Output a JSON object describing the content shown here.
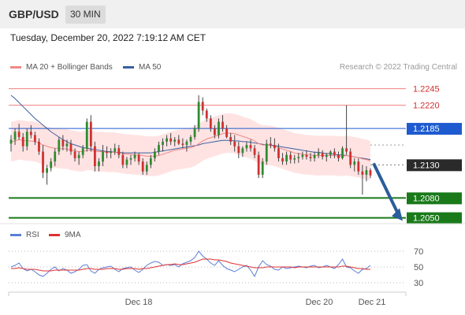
{
  "header": {
    "symbol": "GBP/USD",
    "timeframe": "30 MIN"
  },
  "timestamp": "Tuesday, December 20, 2022 7:19:12 AM CET",
  "legend": {
    "ma20": {
      "label": "MA 20 + Bollinger Bands",
      "color": "#f08a84"
    },
    "ma50": {
      "label": "MA 50",
      "color": "#3a5fa0"
    }
  },
  "credit": "Research © 2022 Trading Central",
  "rsi_legend": {
    "rsi": {
      "label": "RSI",
      "color": "#5b7fd6"
    },
    "ma9": {
      "label": "9MA",
      "color": "#e03030"
    }
  },
  "colors": {
    "bull": "#2e8b2e",
    "bear": "#d03030",
    "resistance": "#f08080",
    "support": "#1a7a1a",
    "pivot": "#1e5bd0",
    "current": "#2a2a2a",
    "forecast": "#2a5d9a",
    "band": "#ffdcdc"
  },
  "chart_data": {
    "type": "candlestick",
    "title": "GBP/USD",
    "ylim": [
      1.204,
      1.226
    ],
    "x_ticks": [
      "Dec 18",
      "Dec 20",
      "Dec 21"
    ],
    "levels": [
      {
        "label": "1.2245",
        "value": 1.2245,
        "kind": "resistance"
      },
      {
        "label": "1.2220",
        "value": 1.222,
        "kind": "resistance"
      },
      {
        "label": "1.2185",
        "value": 1.2185,
        "kind": "pivot"
      },
      {
        "label": "1.2130",
        "value": 1.213,
        "kind": "current"
      },
      {
        "label": "1.2080",
        "value": 1.208,
        "kind": "support"
      },
      {
        "label": "1.2050",
        "value": 1.205,
        "kind": "support"
      }
    ],
    "forecast": {
      "from": 1.213,
      "to": 1.2055,
      "direction": "down"
    },
    "ohlc": [
      [
        1.2162,
        1.2175,
        1.215,
        1.2168
      ],
      [
        1.2168,
        1.2185,
        1.216,
        1.218
      ],
      [
        1.218,
        1.2192,
        1.2168,
        1.2172
      ],
      [
        1.2172,
        1.2178,
        1.215,
        1.2158
      ],
      [
        1.2158,
        1.2185,
        1.2152,
        1.218
      ],
      [
        1.218,
        1.219,
        1.217,
        1.2175
      ],
      [
        1.2175,
        1.218,
        1.216,
        1.2165
      ],
      [
        1.2165,
        1.217,
        1.2145,
        1.215
      ],
      [
        1.215,
        1.216,
        1.211,
        1.2118
      ],
      [
        1.2118,
        1.213,
        1.21,
        1.2125
      ],
      [
        1.2125,
        1.214,
        1.212,
        1.2135
      ],
      [
        1.2135,
        1.2155,
        1.2128,
        1.215
      ],
      [
        1.215,
        1.2172,
        1.2145,
        1.2168
      ],
      [
        1.2168,
        1.2175,
        1.2152,
        1.2158
      ],
      [
        1.2158,
        1.2168,
        1.215,
        1.2162
      ],
      [
        1.2162,
        1.2168,
        1.2145,
        1.215
      ],
      [
        1.215,
        1.2155,
        1.2135,
        1.214
      ],
      [
        1.214,
        1.215,
        1.213,
        1.2145
      ],
      [
        1.2145,
        1.216,
        1.214,
        1.2155
      ],
      [
        1.2155,
        1.22,
        1.215,
        1.2195
      ],
      [
        1.2195,
        1.2205,
        1.215,
        1.2158
      ],
      [
        1.2158,
        1.2165,
        1.212,
        1.2128
      ],
      [
        1.2128,
        1.214,
        1.212,
        1.2135
      ],
      [
        1.2135,
        1.216,
        1.2128,
        1.215
      ],
      [
        1.215,
        1.2158,
        1.214,
        1.2148
      ],
      [
        1.2148,
        1.2155,
        1.214,
        1.215
      ],
      [
        1.215,
        1.2162,
        1.2145,
        1.2155
      ],
      [
        1.2155,
        1.216,
        1.214,
        1.2145
      ],
      [
        1.2145,
        1.215,
        1.2125,
        1.213
      ],
      [
        1.213,
        1.2142,
        1.2125,
        1.2138
      ],
      [
        1.2138,
        1.2145,
        1.213,
        1.214
      ],
      [
        1.214,
        1.215,
        1.2135,
        1.2145
      ],
      [
        1.2145,
        1.2148,
        1.213,
        1.2135
      ],
      [
        1.2135,
        1.214,
        1.2115,
        1.212
      ],
      [
        1.212,
        1.2135,
        1.2115,
        1.213
      ],
      [
        1.213,
        1.2145,
        1.2125,
        1.214
      ],
      [
        1.214,
        1.2155,
        1.2135,
        1.215
      ],
      [
        1.215,
        1.2165,
        1.2145,
        1.216
      ],
      [
        1.216,
        1.217,
        1.215,
        1.2165
      ],
      [
        1.2165,
        1.2175,
        1.2158,
        1.217
      ],
      [
        1.217,
        1.2178,
        1.216,
        1.2165
      ],
      [
        1.2165,
        1.2172,
        1.2158,
        1.2168
      ],
      [
        1.2168,
        1.2175,
        1.216,
        1.2162
      ],
      [
        1.2162,
        1.217,
        1.2155,
        1.216
      ],
      [
        1.216,
        1.2168,
        1.215,
        1.2165
      ],
      [
        1.2165,
        1.2175,
        1.216,
        1.2172
      ],
      [
        1.2172,
        1.219,
        1.2168,
        1.2185
      ],
      [
        1.2185,
        1.2235,
        1.218,
        1.2225
      ],
      [
        1.2225,
        1.2232,
        1.2205,
        1.2212
      ],
      [
        1.2212,
        1.2215,
        1.2195,
        1.22
      ],
      [
        1.22,
        1.2205,
        1.218,
        1.2185
      ],
      [
        1.2185,
        1.219,
        1.217,
        1.2175
      ],
      [
        1.2175,
        1.22,
        1.217,
        1.2195
      ],
      [
        1.2195,
        1.2205,
        1.218,
        1.2185
      ],
      [
        1.2185,
        1.219,
        1.217,
        1.2172
      ],
      [
        1.2172,
        1.2178,
        1.216,
        1.2165
      ],
      [
        1.2165,
        1.2175,
        1.215,
        1.2158
      ],
      [
        1.2158,
        1.2165,
        1.214,
        1.2148
      ],
      [
        1.2148,
        1.2158,
        1.2142,
        1.2155
      ],
      [
        1.2155,
        1.2165,
        1.215,
        1.216
      ],
      [
        1.216,
        1.2168,
        1.215,
        1.2155
      ],
      [
        1.2155,
        1.216,
        1.214,
        1.2145
      ],
      [
        1.2145,
        1.215,
        1.211,
        1.2115
      ],
      [
        1.2115,
        1.214,
        1.211,
        1.2135
      ],
      [
        1.2135,
        1.2168,
        1.213,
        1.2162
      ],
      [
        1.2162,
        1.2172,
        1.2155,
        1.216
      ],
      [
        1.216,
        1.217,
        1.215,
        1.2155
      ],
      [
        1.2155,
        1.2162,
        1.2135,
        1.214
      ],
      [
        1.214,
        1.2148,
        1.213,
        1.2135
      ],
      [
        1.2135,
        1.215,
        1.213,
        1.2145
      ],
      [
        1.2145,
        1.215,
        1.2132,
        1.2138
      ],
      [
        1.2138,
        1.2145,
        1.2132,
        1.214
      ],
      [
        1.214,
        1.2148,
        1.2133,
        1.2142
      ],
      [
        1.2142,
        1.215,
        1.2138,
        1.2145
      ],
      [
        1.2145,
        1.2152,
        1.2138,
        1.2142
      ],
      [
        1.2142,
        1.2148,
        1.2135,
        1.214
      ],
      [
        1.214,
        1.215,
        1.2135,
        1.2145
      ],
      [
        1.2145,
        1.2155,
        1.214,
        1.2148
      ],
      [
        1.2148,
        1.2152,
        1.2138,
        1.2142
      ],
      [
        1.2142,
        1.2148,
        1.2135,
        1.2145
      ],
      [
        1.2145,
        1.2152,
        1.214,
        1.215
      ],
      [
        1.215,
        1.2155,
        1.214,
        1.2145
      ],
      [
        1.2145,
        1.215,
        1.2135,
        1.214
      ],
      [
        1.214,
        1.2158,
        1.2138,
        1.2155
      ],
      [
        1.2155,
        1.222,
        1.2145,
        1.215
      ],
      [
        1.215,
        1.2155,
        1.2125,
        1.213
      ],
      [
        1.213,
        1.214,
        1.212,
        1.2135
      ],
      [
        1.2135,
        1.214,
        1.2115,
        1.212
      ],
      [
        1.212,
        1.213,
        1.2085,
        1.2115
      ],
      [
        1.2115,
        1.2128,
        1.2105,
        1.2122
      ],
      [
        1.2122,
        1.2125,
        1.211,
        1.2114
      ]
    ],
    "ma20": [
      1.2165,
      1.2166,
      1.2168,
      1.2167,
      1.2166,
      1.2166,
      1.2165,
      1.2163,
      1.216,
      1.2158,
      1.2156,
      1.2155,
      1.2155,
      1.2154,
      1.2154,
      1.2152,
      1.2151,
      1.215,
      1.215,
      1.2152,
      1.2152,
      1.215,
      1.215,
      1.215,
      1.2149,
      1.2149,
      1.2149,
      1.2148,
      1.2147,
      1.2146,
      1.2146,
      1.2145,
      1.2145,
      1.2144,
      1.2143,
      1.2143,
      1.2143,
      1.2144,
      1.2146,
      1.2148,
      1.215,
      1.2152,
      1.2153,
      1.2154,
      1.2155,
      1.2156,
      1.2158,
      1.2162,
      1.2166,
      1.2169,
      1.2171,
      1.2173,
      1.2175,
      1.2177,
      1.2178,
      1.2178,
      1.2177,
      1.2175,
      1.2173,
      1.2171,
      1.2169,
      1.2166,
      1.2162,
      1.216,
      1.216,
      1.2159,
      1.2158,
      1.2156,
      1.2154,
      1.2152,
      1.215,
      1.2148,
      1.2147,
      1.2146,
      1.2145,
      1.2145,
      1.2144,
      1.2144,
      1.2144,
      1.2144,
      1.2144,
      1.2144,
      1.2143,
      1.2143,
      1.2144,
      1.2143,
      1.2142,
      1.2141,
      1.2139,
      1.2138,
      1.2136
    ],
    "ma50": [
      1.2235,
      1.223,
      1.2224,
      1.2218,
      1.2212,
      1.2206,
      1.22,
      1.2195,
      1.219,
      1.2185,
      1.218,
      1.2176,
      1.2172,
      1.2168,
      1.2165,
      1.2162,
      1.216,
      1.2158,
      1.2156,
      1.2155,
      1.2154,
      1.2153,
      1.2152,
      1.2151,
      1.215,
      1.215,
      1.2149,
      1.2149,
      1.2148,
      1.2148,
      1.2148,
      1.2148,
      1.2148,
      1.2148,
      1.2148,
      1.2148,
      1.2149,
      1.215,
      1.2151,
      1.2152,
      1.2153,
      1.2154,
      1.2155,
      1.2156,
      1.2157,
      1.2158,
      1.2159,
      1.216,
      1.2162,
      1.2163,
      1.2164,
      1.2165,
      1.2166,
      1.2167,
      1.2167,
      1.2167,
      1.2166,
      1.2166,
      1.2165,
      1.2165,
      1.2164,
      1.2163,
      1.2162,
      1.2161,
      1.216,
      1.216,
      1.2159,
      1.2158,
      1.2157,
      1.2156,
      1.2155,
      1.2154,
      1.2153,
      1.2152,
      1.2151,
      1.215,
      1.2149,
      1.2149,
      1.2148,
      1.2147,
      1.2147,
      1.2146,
      1.2145,
      1.2145,
      1.2144,
      1.2143,
      1.2142,
      1.2141,
      1.214,
      1.2139,
      1.2138
    ],
    "rsi": {
      "ylim": [
        20,
        80
      ],
      "ticks": [
        70,
        50,
        30
      ],
      "values": [
        50,
        52,
        55,
        48,
        45,
        47,
        44,
        40,
        38,
        42,
        47,
        50,
        45,
        48,
        46,
        42,
        44,
        47,
        52,
        53,
        45,
        42,
        47,
        49,
        50,
        51,
        47,
        44,
        48,
        49,
        50,
        46,
        43,
        47,
        52,
        55,
        57,
        56,
        52,
        53,
        52,
        53,
        50,
        54,
        56,
        58,
        62,
        70,
        64,
        60,
        55,
        52,
        58,
        52,
        48,
        46,
        44,
        47,
        50,
        52,
        46,
        38,
        50,
        58,
        53,
        51,
        47,
        46,
        50,
        48,
        49,
        50,
        51,
        50,
        49,
        51,
        52,
        49,
        50,
        52,
        50,
        48,
        53,
        60,
        50,
        49,
        45,
        42,
        47,
        48,
        52
      ],
      "ma9": [
        48,
        48,
        49,
        48,
        47,
        47,
        47,
        46,
        45,
        45,
        45,
        46,
        46,
        46,
        46,
        46,
        46,
        46,
        47,
        48,
        48,
        47,
        47,
        47,
        48,
        48,
        48,
        47,
        47,
        48,
        48,
        48,
        47,
        48,
        48,
        49,
        50,
        51,
        52,
        53,
        53,
        54,
        53,
        53,
        54,
        55,
        56,
        58,
        60,
        60,
        60,
        59,
        59,
        58,
        57,
        55,
        54,
        53,
        52,
        51,
        50,
        49,
        49,
        49,
        50,
        50,
        50,
        50,
        50,
        50,
        50,
        49,
        50,
        50,
        50,
        50,
        50,
        50,
        50,
        50,
        50,
        50,
        50,
        51,
        51,
        50,
        49,
        48,
        48,
        47,
        47
      ]
    }
  }
}
